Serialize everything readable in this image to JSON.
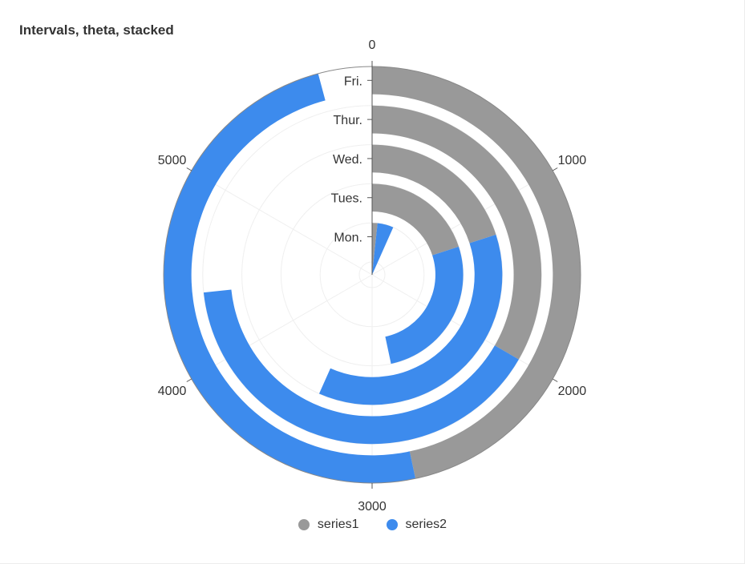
{
  "chart_data": {
    "type": "bar",
    "coordinate": "polar-theta",
    "title": "Intervals, theta, stacked",
    "categories": [
      "Mon.",
      "Tues.",
      "Wed.",
      "Thur.",
      "Fri."
    ],
    "series": [
      {
        "name": "series1",
        "color": "#999999",
        "values": [
          100,
          1200,
          1200,
          2000,
          2800
        ]
      },
      {
        "name": "series2",
        "color": "#3d8bed",
        "values": [
          300,
          1600,
          2200,
          2400,
          2950
        ]
      }
    ],
    "theta_range": [
      0,
      6000
    ],
    "theta_ticks": [
      "0",
      "1000",
      "2000",
      "3000",
      "4000",
      "5000"
    ],
    "grid": true,
    "legend_position": "bottom"
  }
}
